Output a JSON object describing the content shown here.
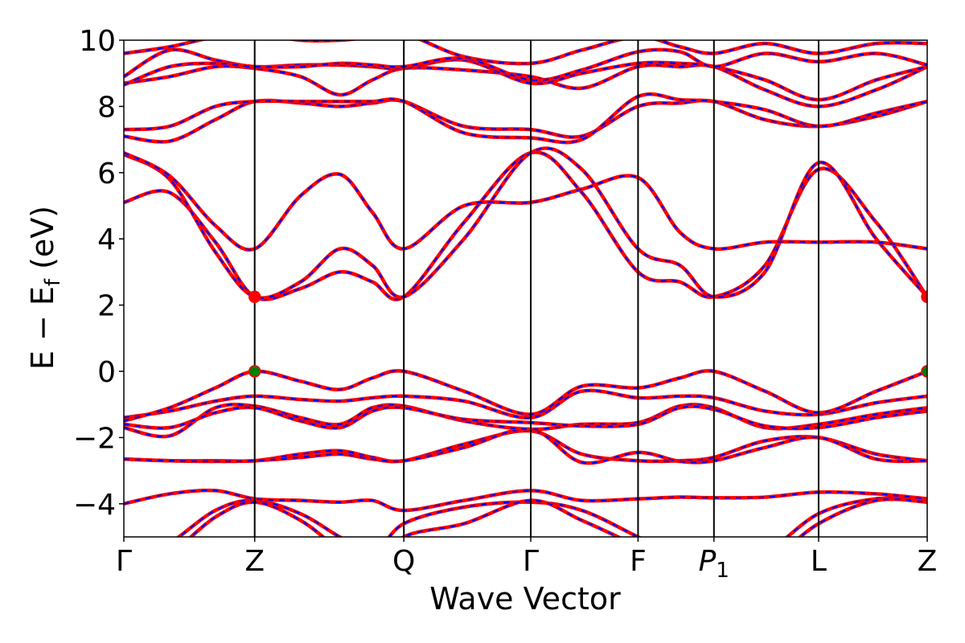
{
  "chart_data": {
    "type": "line",
    "title": "",
    "xlabel": "Wave Vector",
    "ylabel": "E − E_f (eV)",
    "ylabel_parts": {
      "main": "E  −  E",
      "sub": "f",
      "tail": " (eV)"
    },
    "ylim": [
      -5,
      10
    ],
    "yticks": [
      -4,
      -2,
      0,
      2,
      4,
      6,
      8,
      10
    ],
    "ytick_labels": [
      "−4",
      "−2",
      "0",
      "2",
      "4",
      "6",
      "8",
      "10"
    ],
    "xlim": [
      0,
      6.14
    ],
    "high_symmetry_points": [
      {
        "label": "Γ",
        "x": 0.0
      },
      {
        "label": "Z",
        "x": 1.0
      },
      {
        "label": "Q",
        "x": 2.14
      },
      {
        "label": "Γ",
        "x": 3.11
      },
      {
        "label": "F",
        "x": 3.93
      },
      {
        "label": "P1",
        "label_main": "P",
        "label_sub": "1",
        "x": 4.51
      },
      {
        "label": "L",
        "x": 5.31
      },
      {
        "label": "Z",
        "x": 6.14
      }
    ],
    "band_styles": [
      {
        "color": "#ff0000",
        "stroke": "solid"
      },
      {
        "color": "#0000ff",
        "stroke": "dashed"
      }
    ],
    "markers": [
      {
        "name": "CBM",
        "color": "#ff0000",
        "points": [
          [
            1.0,
            2.25
          ],
          [
            6.14,
            2.25
          ]
        ]
      },
      {
        "name": "VBM",
        "color": "#008000",
        "points": [
          [
            1.0,
            0.0
          ],
          [
            6.14,
            0.0
          ]
        ]
      }
    ],
    "bands": [
      [
        -6.0,
        -5.2,
        -4.2,
        -3.9,
        -4.3,
        -5.0,
        -5.5,
        -4.6,
        -4.1,
        -3.95,
        -4.2,
        -5.0,
        -5.6,
        -6.0,
        -5.5,
        -4.3,
        -3.85,
        -3.9
      ],
      [
        -6.0,
        -5.5,
        -4.4,
        -3.95,
        -4.5,
        -5.4,
        -6.0,
        -5.0,
        -4.6,
        -3.9,
        -4.5,
        -5.3,
        -6.0,
        -6.0,
        -5.8,
        -4.6,
        -3.9,
        -3.95
      ],
      [
        -4.0,
        -3.7,
        -3.6,
        -3.85,
        -3.9,
        -3.95,
        -3.9,
        -4.2,
        -3.9,
        -3.6,
        -3.9,
        -3.85,
        -3.8,
        -3.82,
        -3.8,
        -3.65,
        -3.7,
        -3.85
      ],
      [
        -2.65,
        -2.7,
        -2.7,
        -2.7,
        -2.5,
        -2.4,
        -2.6,
        -2.7,
        -2.2,
        -1.8,
        -2.5,
        -2.7,
        -2.7,
        -2.6,
        -2.1,
        -2.0,
        -2.5,
        -2.7
      ],
      [
        -2.65,
        -2.7,
        -2.72,
        -2.7,
        -2.6,
        -2.5,
        -2.65,
        -2.7,
        -2.3,
        -1.75,
        -2.75,
        -2.45,
        -2.72,
        -2.7,
        -2.3,
        -2.0,
        -2.65,
        -2.7
      ],
      [
        -1.7,
        -1.95,
        -1.1,
        -1.05,
        -1.4,
        -1.6,
        -1.1,
        -1.05,
        -1.5,
        -1.75,
        -1.6,
        -1.55,
        -1.05,
        -1.1,
        -1.7,
        -1.6,
        -1.3,
        -1.1
      ],
      [
        -1.6,
        -1.7,
        -1.25,
        -1.1,
        -1.5,
        -1.7,
        -1.2,
        -1.1,
        -1.45,
        -1.55,
        -1.65,
        -1.6,
        -1.1,
        -1.15,
        -1.65,
        -1.7,
        -1.4,
        -1.2
      ],
      [
        -1.4,
        -1.2,
        -0.9,
        -0.75,
        -0.85,
        -0.9,
        -0.8,
        -0.75,
        -0.9,
        -1.4,
        -0.6,
        -0.8,
        -0.75,
        -0.8,
        -1.2,
        -1.3,
        -0.95,
        -0.75
      ],
      [
        -1.5,
        -1.1,
        -0.5,
        0.0,
        -0.3,
        -0.55,
        -0.2,
        0.0,
        -0.6,
        -1.3,
        -0.45,
        -0.5,
        -0.2,
        0.0,
        -0.6,
        -1.25,
        -0.6,
        0.0
      ],
      [
        5.1,
        5.4,
        3.9,
        2.25,
        2.5,
        3.0,
        2.7,
        2.25,
        4.5,
        6.6,
        5.4,
        3.0,
        2.7,
        2.25,
        3.2,
        6.1,
        4.5,
        2.25
      ],
      [
        6.55,
        5.8,
        3.6,
        2.25,
        2.7,
        3.7,
        3.2,
        2.25,
        4.0,
        6.6,
        6.1,
        3.7,
        3.2,
        2.25,
        3.0,
        6.3,
        4.0,
        2.25
      ],
      [
        6.6,
        5.9,
        4.4,
        3.7,
        5.3,
        5.95,
        4.8,
        3.7,
        5.0,
        5.1,
        5.5,
        5.85,
        4.2,
        3.7,
        3.9,
        3.9,
        3.9,
        3.7
      ],
      [
        7.1,
        6.95,
        7.6,
        8.15,
        8.1,
        8.0,
        8.1,
        8.15,
        7.4,
        7.3,
        7.1,
        8.0,
        8.1,
        8.15,
        7.6,
        7.4,
        7.7,
        8.15
      ],
      [
        7.3,
        7.4,
        8.0,
        8.15,
        8.15,
        8.15,
        8.15,
        8.15,
        7.2,
        7.05,
        7.0,
        8.3,
        8.2,
        8.15,
        7.9,
        7.4,
        7.8,
        8.15
      ],
      [
        8.7,
        8.9,
        9.2,
        9.15,
        8.9,
        8.35,
        8.8,
        9.15,
        9.1,
        8.9,
        8.55,
        9.2,
        9.2,
        9.2,
        8.5,
        8.0,
        8.5,
        9.2
      ],
      [
        8.9,
        9.7,
        9.4,
        9.2,
        9.25,
        9.25,
        9.2,
        9.15,
        9.4,
        8.7,
        9.0,
        9.3,
        9.3,
        9.2,
        8.8,
        8.2,
        8.8,
        9.2
      ],
      [
        8.65,
        9.2,
        9.3,
        9.2,
        9.2,
        9.3,
        9.25,
        9.2,
        9.45,
        8.8,
        9.1,
        9.65,
        9.65,
        9.2,
        9.6,
        9.35,
        9.6,
        9.25
      ],
      [
        9.6,
        9.8,
        10.1,
        10.2,
        10.0,
        10.0,
        10.1,
        10.2,
        9.5,
        9.3,
        9.7,
        10.1,
        9.8,
        9.6,
        9.9,
        9.6,
        9.9,
        9.9
      ]
    ],
    "band_x": [
      0.0,
      0.35,
      0.7,
      1.0,
      1.35,
      1.65,
      1.9,
      2.14,
      2.6,
      3.11,
      3.5,
      3.93,
      4.25,
      4.51,
      4.9,
      5.31,
      5.75,
      6.14
    ]
  }
}
